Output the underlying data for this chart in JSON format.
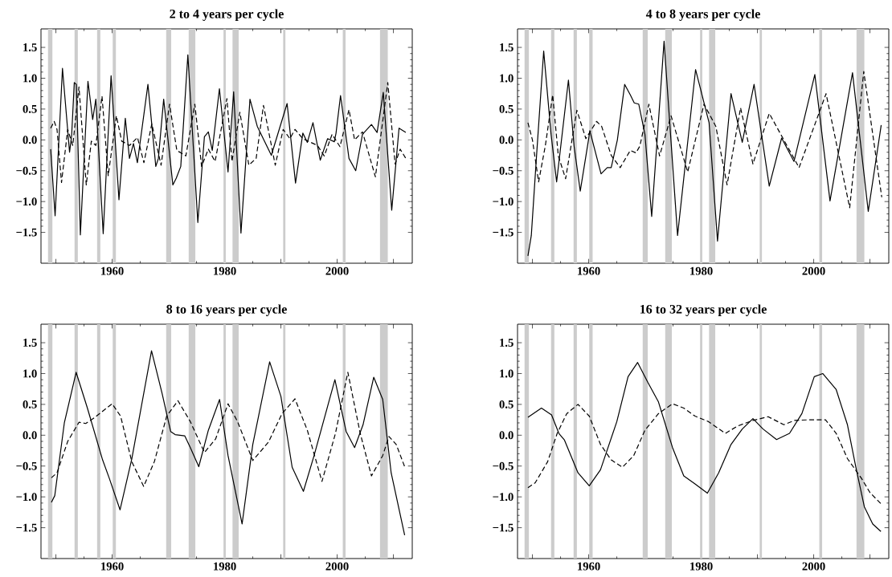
{
  "chart_data": [
    {
      "type": "line",
      "title": "2 to 4 years per cycle",
      "xlim": [
        1947.35,
        2013.35
      ],
      "ylim": [
        -2.0,
        1.8
      ],
      "xticks": [
        {
          "value": 1950,
          "label": null
        },
        1960,
        {
          "value": 1970,
          "label": null
        },
        1980,
        {
          "value": 1990,
          "label": null
        },
        2000,
        {
          "value": 2010,
          "label": null
        }
      ],
      "yticks": [
        {
          "value": -1.5,
          "label": "−1.5"
        },
        {
          "value": -1.0,
          "label": "−1.0"
        },
        {
          "value": -0.5,
          "label": "−0.5"
        },
        {
          "value": 0.0,
          "label": "0.0"
        },
        {
          "value": 0.5,
          "label": "0.5"
        },
        {
          "value": 1.0,
          "label": "1.0"
        },
        {
          "value": 1.5,
          "label": "1.5"
        }
      ],
      "bands": [
        {
          "axis": "x",
          "from": 1948.6,
          "to": 1949.4,
          "color": "#cccccc"
        },
        {
          "axis": "x",
          "from": 1953.3,
          "to": 1953.9,
          "color": "#cccccc"
        },
        {
          "axis": "x",
          "from": 1957.3,
          "to": 1957.9,
          "color": "#cccccc"
        },
        {
          "axis": "x",
          "from": 1960.1,
          "to": 1960.7,
          "color": "#cccccc"
        },
        {
          "axis": "x",
          "from": 1969.6,
          "to": 1970.5,
          "color": "#cccccc"
        },
        {
          "axis": "x",
          "from": 1973.6,
          "to": 1974.8,
          "color": "#cccccc"
        },
        {
          "axis": "x",
          "from": 1979.8,
          "to": 1980.2,
          "color": "#cccccc"
        },
        {
          "axis": "x",
          "from": 1981.4,
          "to": 1982.5,
          "color": "#cccccc"
        },
        {
          "axis": "x",
          "from": 1990.4,
          "to": 1990.8,
          "color": "#cccccc"
        },
        {
          "axis": "x",
          "from": 2001.0,
          "to": 2001.5,
          "color": "#cccccc"
        },
        {
          "axis": "x",
          "from": 2007.6,
          "to": 2009.0,
          "color": "#cccccc"
        }
      ],
      "series": [
        {
          "color": "#000000",
          "line_style": "solid",
          "x": [
            1949.07,
            1949.86,
            1951.17,
            1952.43,
            1952.8,
            1953.27,
            1953.64,
            1954.35,
            1955.7,
            1956.54,
            1957.1,
            1958.41,
            1959.81,
            1961.21,
            1962.34,
            1963.08,
            1963.79,
            1964.49,
            1966.36,
            1967.76,
            1968.22,
            1969.16,
            1970.79,
            1971.4,
            1972.2,
            1973.46,
            1975.23,
            1976.4,
            1977.1,
            1977.8,
            1979.07,
            1980.6,
            1981.6,
            1982.9,
            1984.5,
            1985.8,
            1988.3,
            1991.1,
            1992.6,
            1993.9,
            1994.7,
            1995.7,
            1997.0,
            1998.3,
            1999.5,
            1999.8,
            2000.6,
            2002.1,
            2003.3,
            2004.5,
            2006.1,
            2007.1,
            2008.2,
            2009.7,
            2011.0,
            2012.2
          ],
          "values": [
            -0.15,
            -1.23,
            1.16,
            -0.2,
            0.07,
            0.93,
            0.9,
            -1.54,
            0.95,
            0.33,
            0.66,
            -1.52,
            1.04,
            -0.97,
            0.35,
            -0.3,
            -0.06,
            -0.37,
            0.9,
            -0.43,
            -0.3,
            0.66,
            -0.73,
            -0.62,
            -0.43,
            1.38,
            -1.34,
            0.05,
            0.13,
            -0.17,
            0.83,
            -0.52,
            0.78,
            -1.51,
            0.66,
            0.22,
            -0.25,
            0.59,
            -0.7,
            0.11,
            -0.04,
            0.28,
            -0.33,
            0.02,
            -0.03,
            0.11,
            0.72,
            -0.3,
            -0.5,
            0.09,
            0.25,
            0.12,
            0.77,
            -1.14,
            0.19,
            0.12
          ]
        },
        {
          "color": "#000000",
          "line_style": "dashed",
          "x": [
            1949.07,
            1949.7,
            1950.2,
            1951.0,
            1952.1,
            1953.0,
            1954.1,
            1955.4,
            1956.3,
            1957.1,
            1958.2,
            1959.3,
            1960.75,
            1961.7,
            1963.1,
            1964.5,
            1965.65,
            1967.05,
            1968.7,
            1970.2,
            1971.5,
            1973.1,
            1974.7,
            1975.9,
            1977.1,
            1978.3,
            1980.4,
            1981.3,
            1982.7,
            1984.3,
            1985.6,
            1986.9,
            1989.0,
            1990.4,
            1991.6,
            1992.5,
            1993.9,
            1996.5,
            1997.7,
            1999.1,
            2000.5,
            2002.1,
            2003.1,
            2004.5,
            2006.8,
            2009.0,
            2010.3,
            2011.2,
            2012.2
          ],
          "values": [
            0.19,
            0.3,
            0.17,
            -0.69,
            0.17,
            -0.09,
            0.86,
            -0.73,
            -0.02,
            -0.09,
            0.71,
            -0.58,
            0.39,
            -0.02,
            -0.09,
            0.04,
            -0.37,
            0.26,
            -0.41,
            0.58,
            -0.17,
            -0.26,
            0.58,
            -0.43,
            -0.15,
            -0.35,
            0.67,
            -0.35,
            0.45,
            -0.41,
            -0.3,
            0.56,
            -0.41,
            0.17,
            0.02,
            0.17,
            0.02,
            -0.09,
            -0.26,
            0.09,
            -0.11,
            0.49,
            0.0,
            0.13,
            -0.6,
            0.93,
            -0.39,
            -0.15,
            -0.3
          ]
        }
      ]
    },
    {
      "type": "line",
      "title": "4 to 8 years per cycle",
      "xlim": [
        1947.35,
        2013.35
      ],
      "ylim": [
        -2.0,
        1.8
      ],
      "xticks": [
        {
          "value": 1950,
          "label": null
        },
        1960,
        {
          "value": 1970,
          "label": null
        },
        1980,
        {
          "value": 1990,
          "label": null
        },
        2000,
        {
          "value": 2010,
          "label": null
        }
      ],
      "yticks": [
        {
          "value": -1.5,
          "label": "−1.5"
        },
        {
          "value": -1.0,
          "label": "−1.0"
        },
        {
          "value": -0.5,
          "label": "−0.5"
        },
        {
          "value": 0.0,
          "label": "0.0"
        },
        {
          "value": 0.5,
          "label": "0.5"
        },
        {
          "value": 1.0,
          "label": "1.0"
        },
        {
          "value": 1.5,
          "label": "1.5"
        }
      ],
      "bands": [
        {
          "axis": "x",
          "from": 1948.6,
          "to": 1949.4,
          "color": "#cccccc"
        },
        {
          "axis": "x",
          "from": 1953.3,
          "to": 1953.9,
          "color": "#cccccc"
        },
        {
          "axis": "x",
          "from": 1957.3,
          "to": 1957.9,
          "color": "#cccccc"
        },
        {
          "axis": "x",
          "from": 1960.1,
          "to": 1960.7,
          "color": "#cccccc"
        },
        {
          "axis": "x",
          "from": 1969.6,
          "to": 1970.5,
          "color": "#cccccc"
        },
        {
          "axis": "x",
          "from": 1973.6,
          "to": 1974.8,
          "color": "#cccccc"
        },
        {
          "axis": "x",
          "from": 1979.8,
          "to": 1980.2,
          "color": "#cccccc"
        },
        {
          "axis": "x",
          "from": 1981.4,
          "to": 1982.5,
          "color": "#cccccc"
        },
        {
          "axis": "x",
          "from": 1990.4,
          "to": 1990.8,
          "color": "#cccccc"
        },
        {
          "axis": "x",
          "from": 2001.0,
          "to": 2001.5,
          "color": "#cccccc"
        },
        {
          "axis": "x",
          "from": 2007.6,
          "to": 2009.0,
          "color": "#cccccc"
        }
      ],
      "series": [
        {
          "color": "#000000",
          "line_style": "solid",
          "x": [
            1949.2,
            1949.8,
            1950.7,
            1952.0,
            1953.3,
            1954.3,
            1956.4,
            1957.4,
            1958.5,
            1960.0,
            1960.2,
            1962.2,
            1963.3,
            1964.0,
            1965.1,
            1966.4,
            1967.4,
            1968.1,
            1968.9,
            1970.0,
            1971.2,
            1972.3,
            1973.4,
            1975.8,
            1979.0,
            1981.4,
            1982.9,
            1985.3,
            1987.3,
            1989.4,
            1992.1,
            1994.3,
            1996.5,
            2000.2,
            2002.9,
            2006.9,
            2009.7,
            2012.0
          ],
          "values": [
            -1.88,
            -1.55,
            -0.3,
            1.44,
            0.1,
            -0.68,
            0.97,
            -0.1,
            -0.83,
            0.02,
            0.15,
            -0.55,
            -0.45,
            -0.45,
            0.0,
            0.9,
            0.73,
            0.6,
            0.58,
            0.09,
            -1.24,
            0.17,
            1.6,
            -1.55,
            1.14,
            0.28,
            -1.64,
            0.75,
            -0.04,
            0.9,
            -0.75,
            0.03,
            -0.35,
            1.06,
            -0.99,
            1.09,
            -1.16,
            0.24
          ]
        },
        {
          "color": "#000000",
          "line_style": "dashed",
          "x": [
            1949.2,
            1950.0,
            1951.1,
            1952.3,
            1953.6,
            1954.6,
            1955.9,
            1957.9,
            1959.5,
            1961.4,
            1962.3,
            1964.0,
            1965.6,
            1967.4,
            1968.4,
            1969.1,
            1970.7,
            1972.6,
            1974.65,
            1977.6,
            1980.5,
            1982.6,
            1984.6,
            1987.0,
            1989.2,
            1992.1,
            1997.4,
            2002.2,
            2006.4,
            2008.9,
            2012.1
          ],
          "values": [
            0.28,
            0.0,
            -0.68,
            -0.09,
            0.73,
            -0.26,
            -0.63,
            0.48,
            0.02,
            0.3,
            0.22,
            -0.25,
            -0.45,
            -0.17,
            -0.21,
            -0.1,
            0.58,
            -0.26,
            0.39,
            -0.52,
            0.58,
            0.22,
            -0.73,
            0.52,
            -0.39,
            0.43,
            -0.45,
            0.75,
            -1.1,
            1.11,
            -0.93
          ]
        }
      ]
    },
    {
      "type": "line",
      "title": "8 to 16 years per cycle",
      "xlim": [
        1947.35,
        2013.35
      ],
      "ylim": [
        -2.0,
        1.8
      ],
      "xticks": [
        {
          "value": 1950,
          "label": null
        },
        1960,
        {
          "value": 1970,
          "label": null
        },
        1980,
        {
          "value": 1990,
          "label": null
        },
        2000,
        {
          "value": 2010,
          "label": null
        }
      ],
      "yticks": [
        {
          "value": -1.5,
          "label": "−1.5"
        },
        {
          "value": -1.0,
          "label": "−1.0"
        },
        {
          "value": -0.5,
          "label": "−0.5"
        },
        {
          "value": 0.0,
          "label": "0.0"
        },
        {
          "value": 0.5,
          "label": "0.5"
        },
        {
          "value": 1.0,
          "label": "1.0"
        },
        {
          "value": 1.5,
          "label": "1.5"
        }
      ],
      "bands": [
        {
          "axis": "x",
          "from": 1948.6,
          "to": 1949.4,
          "color": "#cccccc"
        },
        {
          "axis": "x",
          "from": 1953.3,
          "to": 1953.9,
          "color": "#cccccc"
        },
        {
          "axis": "x",
          "from": 1957.3,
          "to": 1957.9,
          "color": "#cccccc"
        },
        {
          "axis": "x",
          "from": 1960.1,
          "to": 1960.7,
          "color": "#cccccc"
        },
        {
          "axis": "x",
          "from": 1969.6,
          "to": 1970.5,
          "color": "#cccccc"
        },
        {
          "axis": "x",
          "from": 1973.6,
          "to": 1974.8,
          "color": "#cccccc"
        },
        {
          "axis": "x",
          "from": 1979.8,
          "to": 1980.2,
          "color": "#cccccc"
        },
        {
          "axis": "x",
          "from": 1981.4,
          "to": 1982.5,
          "color": "#cccccc"
        },
        {
          "axis": "x",
          "from": 1990.4,
          "to": 1990.8,
          "color": "#cccccc"
        },
        {
          "axis": "x",
          "from": 2001.0,
          "to": 2001.5,
          "color": "#cccccc"
        },
        {
          "axis": "x",
          "from": 2007.6,
          "to": 2009.0,
          "color": "#cccccc"
        }
      ],
      "series": [
        {
          "color": "#000000",
          "line_style": "solid",
          "x": [
            1949.2,
            1949.8,
            1951.5,
            1953.6,
            1955.6,
            1958.3,
            1959.5,
            1961.4,
            1963.5,
            1967.0,
            1968.9,
            1970.4,
            1971.2,
            1972.9,
            1973.9,
            1975.4,
            1977.1,
            1979.1,
            1980.6,
            1983.1,
            1985.0,
            1988.0,
            1990.0,
            1992.0,
            1994.0,
            1995.9,
            1999.6,
            2001.6,
            2003.1,
            2004.6,
            2006.5,
            2008.1,
            2009.6,
            2012.0
          ],
          "values": [
            -1.09,
            -0.98,
            0.2,
            1.02,
            0.44,
            -0.4,
            -0.7,
            -1.21,
            -0.38,
            1.37,
            0.67,
            0.06,
            0.01,
            -0.01,
            -0.2,
            -0.51,
            0.08,
            0.58,
            -0.33,
            -1.44,
            -0.15,
            1.19,
            0.63,
            -0.52,
            -0.91,
            -0.33,
            0.9,
            0.06,
            -0.2,
            0.17,
            0.94,
            0.58,
            -0.61,
            -1.62
          ]
        },
        {
          "color": "#000000",
          "line_style": "dashed",
          "x": [
            1949.2,
            1950.2,
            1952.1,
            1954.1,
            1955.3,
            1956.8,
            1960.0,
            1961.5,
            1963.5,
            1965.6,
            1967.5,
            1969.7,
            1971.7,
            1973.9,
            1976.4,
            1978.4,
            1980.6,
            1982.3,
            1985.0,
            1987.8,
            1990.2,
            1992.5,
            1994.7,
            1997.3,
            1999.7,
            2001.9,
            2004.1,
            2006.1,
            2008.1,
            2009.2,
            2010.5,
            2012.0
          ],
          "values": [
            -0.69,
            -0.61,
            -0.1,
            0.21,
            0.19,
            0.28,
            0.51,
            0.31,
            -0.43,
            -0.83,
            -0.43,
            0.31,
            0.56,
            0.22,
            -0.28,
            -0.06,
            0.51,
            0.22,
            -0.41,
            -0.11,
            0.35,
            0.59,
            0.08,
            -0.75,
            0.03,
            1.02,
            0.03,
            -0.66,
            -0.33,
            -0.02,
            -0.15,
            -0.51
          ]
        }
      ]
    },
    {
      "type": "line",
      "title": "16 to 32 years per cycle",
      "xlim": [
        1947.35,
        2013.35
      ],
      "ylim": [
        -2.0,
        1.8
      ],
      "xticks": [
        {
          "value": 1950,
          "label": null
        },
        1960,
        {
          "value": 1970,
          "label": null
        },
        1980,
        {
          "value": 1990,
          "label": null
        },
        2000,
        {
          "value": 2010,
          "label": null
        }
      ],
      "yticks": [
        {
          "value": -1.5,
          "label": "−1.5"
        },
        {
          "value": -1.0,
          "label": "−1.0"
        },
        {
          "value": -0.5,
          "label": "−0.5"
        },
        {
          "value": 0.0,
          "label": "0.0"
        },
        {
          "value": 0.5,
          "label": "0.5"
        },
        {
          "value": 1.0,
          "label": "1.0"
        },
        {
          "value": 1.5,
          "label": "1.5"
        }
      ],
      "bands": [
        {
          "axis": "x",
          "from": 1948.6,
          "to": 1949.4,
          "color": "#cccccc"
        },
        {
          "axis": "x",
          "from": 1953.3,
          "to": 1953.9,
          "color": "#cccccc"
        },
        {
          "axis": "x",
          "from": 1957.3,
          "to": 1957.9,
          "color": "#cccccc"
        },
        {
          "axis": "x",
          "from": 1960.1,
          "to": 1960.7,
          "color": "#cccccc"
        },
        {
          "axis": "x",
          "from": 1969.6,
          "to": 1970.5,
          "color": "#cccccc"
        },
        {
          "axis": "x",
          "from": 1973.6,
          "to": 1974.8,
          "color": "#cccccc"
        },
        {
          "axis": "x",
          "from": 1979.8,
          "to": 1980.2,
          "color": "#cccccc"
        },
        {
          "axis": "x",
          "from": 1981.4,
          "to": 1982.5,
          "color": "#cccccc"
        },
        {
          "axis": "x",
          "from": 1990.4,
          "to": 1990.8,
          "color": "#cccccc"
        },
        {
          "axis": "x",
          "from": 2001.0,
          "to": 2001.5,
          "color": "#cccccc"
        },
        {
          "axis": "x",
          "from": 2007.6,
          "to": 2009.0,
          "color": "#cccccc"
        }
      ],
      "series": [
        {
          "color": "#000000",
          "line_style": "solid",
          "x": [
            1949.2,
            1951.6,
            1953.4,
            1954.7,
            1955.7,
            1958.1,
            1960.1,
            1962.1,
            1965.0,
            1967.0,
            1968.7,
            1970.5,
            1972.4,
            1974.9,
            1976.9,
            1978.9,
            1981.1,
            1983.1,
            1985.3,
            1987.3,
            1989.2,
            1991.0,
            1993.4,
            1995.7,
            1997.9,
            2000.1,
            2001.6,
            2004.0,
            2006.0,
            2007.5,
            2009.0,
            2010.5,
            2011.95
          ],
          "values": [
            0.29,
            0.44,
            0.33,
            0.03,
            -0.08,
            -0.61,
            -0.82,
            -0.56,
            0.22,
            0.95,
            1.18,
            0.86,
            0.54,
            -0.2,
            -0.66,
            -0.79,
            -0.94,
            -0.61,
            -0.15,
            0.1,
            0.27,
            0.1,
            -0.07,
            0.03,
            0.35,
            0.95,
            1.0,
            0.74,
            0.17,
            -0.52,
            -1.16,
            -1.44,
            -1.56
          ]
        },
        {
          "color": "#000000",
          "line_style": "dashed",
          "x": [
            1949.2,
            1950.5,
            1952.7,
            1954.4,
            1956.1,
            1958.1,
            1960.1,
            1962.1,
            1964.0,
            1966.0,
            1968.0,
            1970.0,
            1972.4,
            1974.9,
            1976.9,
            1978.9,
            1981.3,
            1984.3,
            1986.5,
            1989.2,
            1991.9,
            1994.7,
            1996.6,
            1999.1,
            2002.1,
            2004.0,
            2006.0,
            2008.5,
            2010.0,
            2011.95
          ],
          "values": [
            -0.85,
            -0.77,
            -0.43,
            0.03,
            0.35,
            0.5,
            0.31,
            -0.15,
            -0.4,
            -0.52,
            -0.33,
            0.08,
            0.35,
            0.51,
            0.44,
            0.31,
            0.22,
            0.03,
            0.15,
            0.24,
            0.3,
            0.17,
            0.24,
            0.25,
            0.25,
            0.03,
            -0.38,
            -0.7,
            -0.93,
            -1.11
          ]
        }
      ]
    }
  ]
}
